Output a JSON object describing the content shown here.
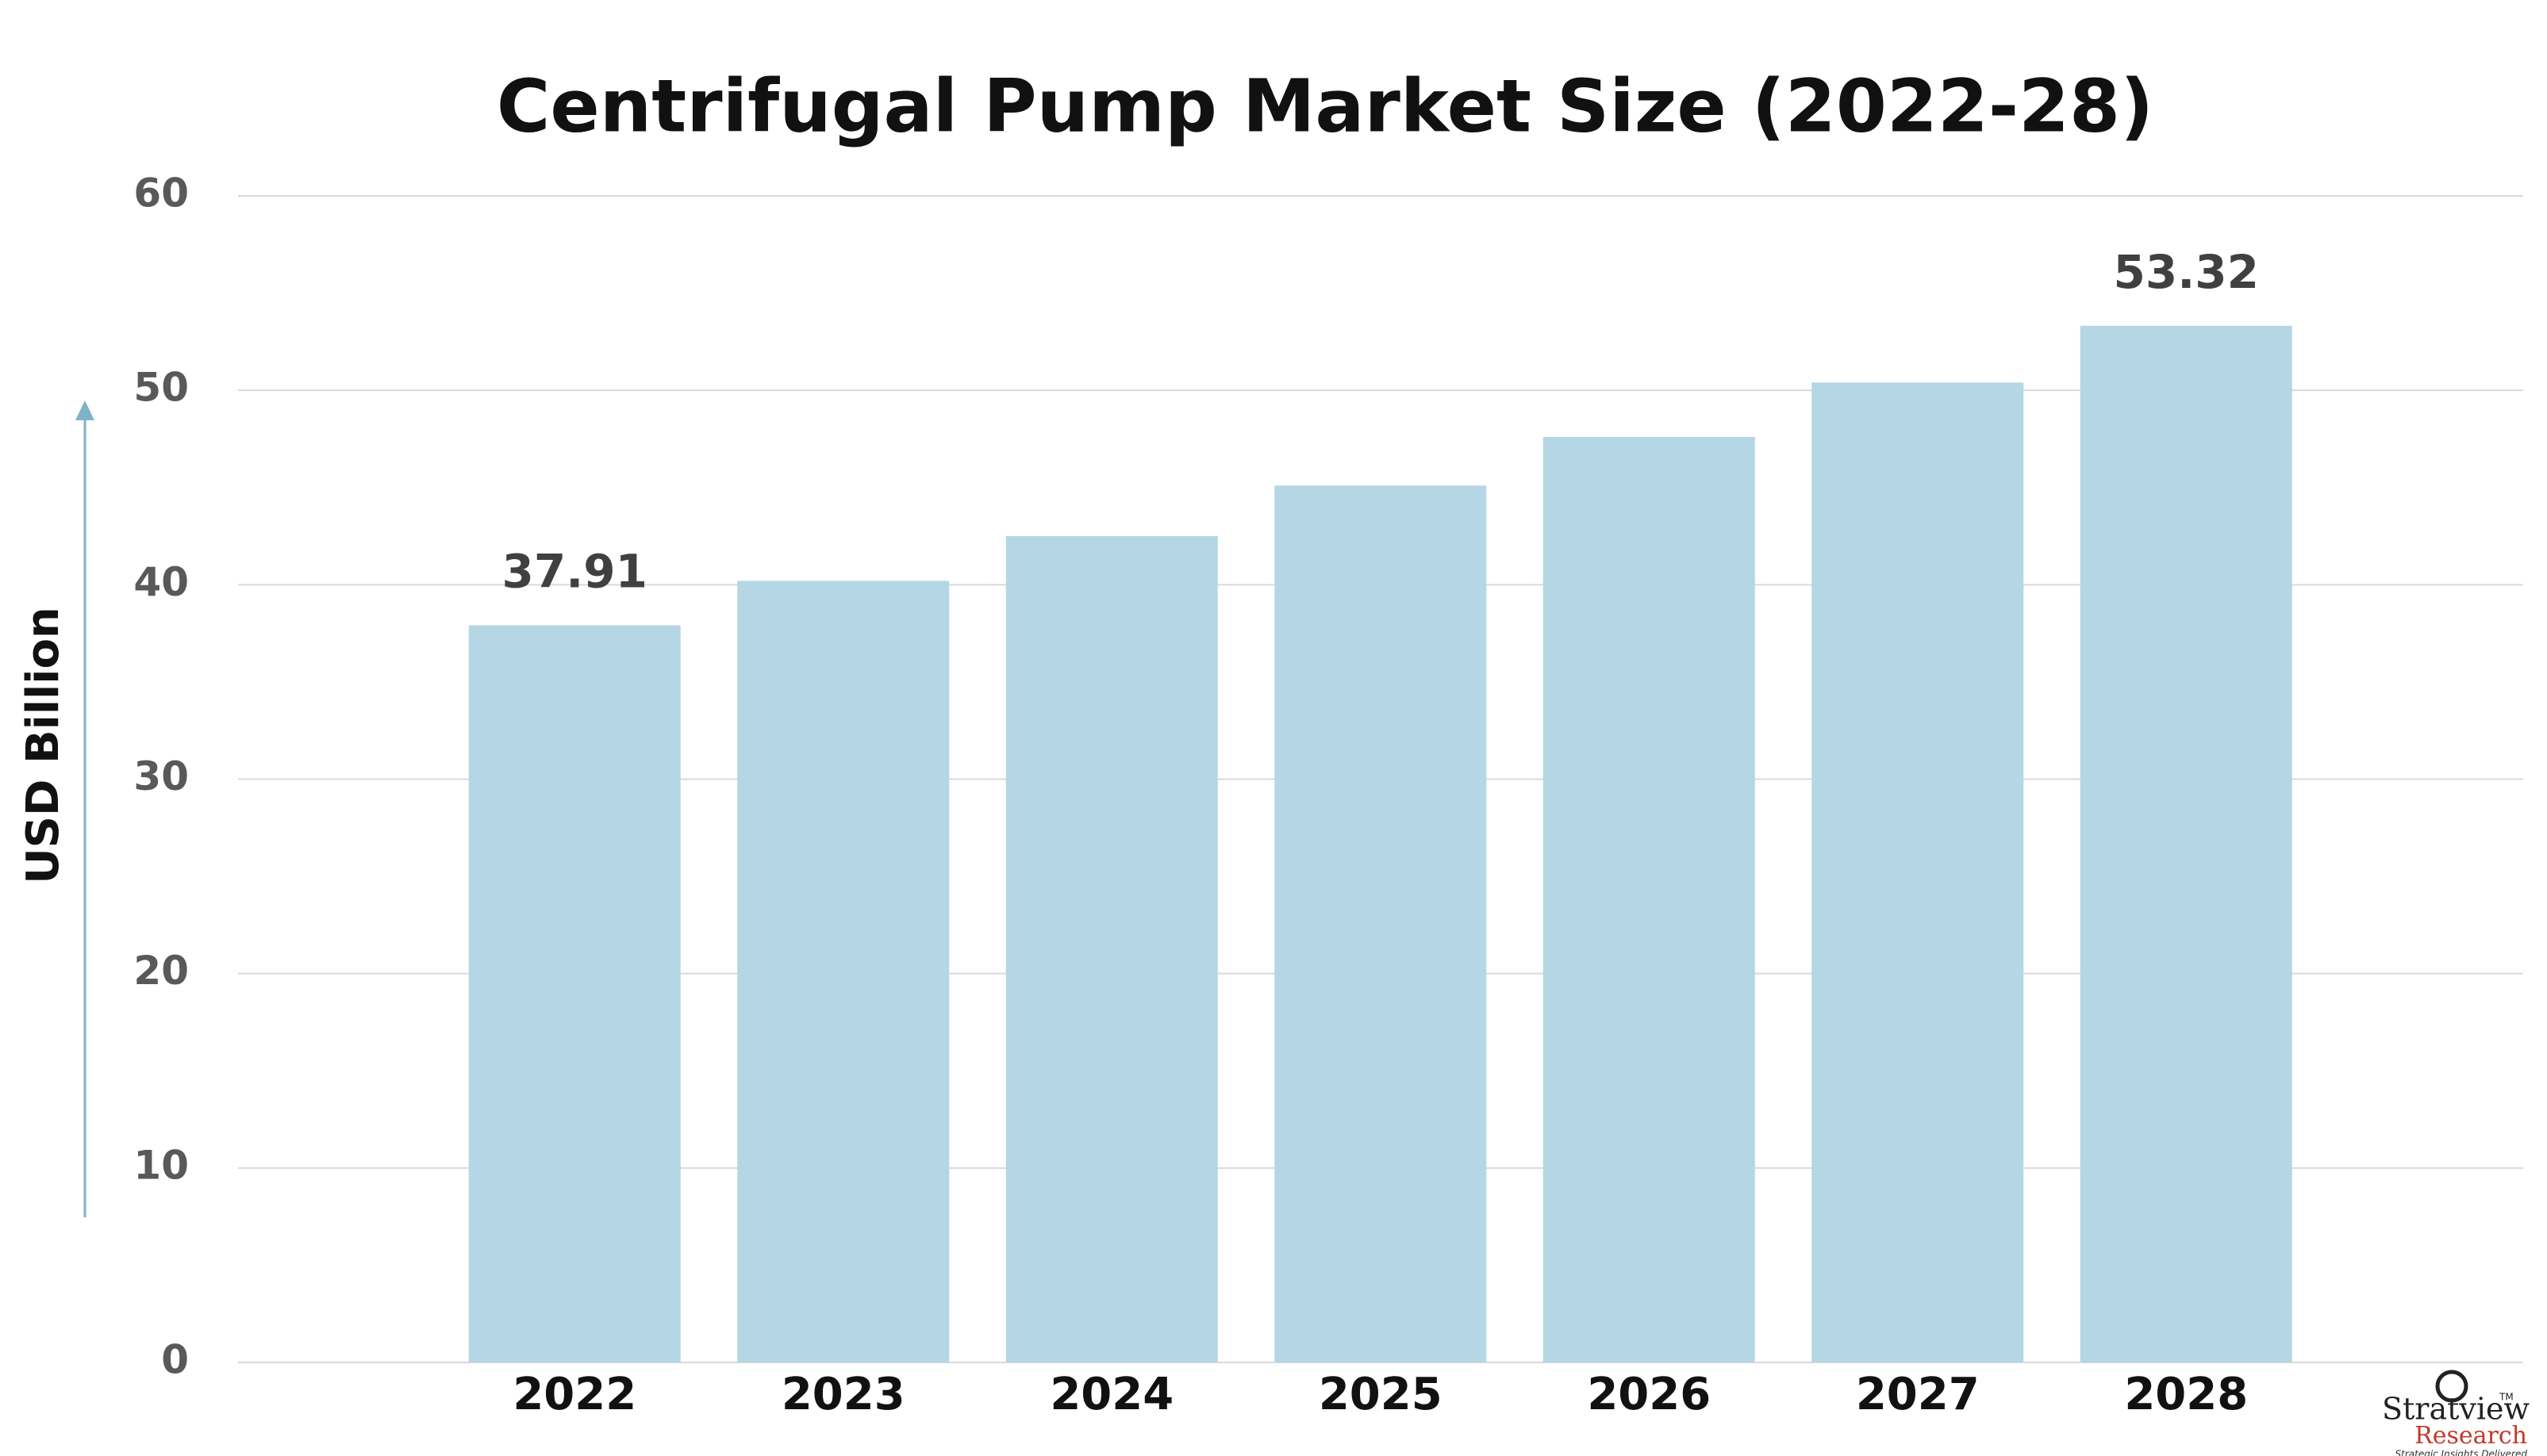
{
  "chart_data": {
    "type": "bar",
    "title": "Centrifugal Pump Market Size (2022-28)",
    "y_axis_label": "USD Billion",
    "categories": [
      "2022",
      "2023",
      "2024",
      "2025",
      "2026",
      "2027",
      "2028"
    ],
    "values": [
      37.91,
      40.2,
      42.5,
      45.1,
      47.6,
      50.4,
      53.32
    ],
    "value_labels": [
      "37.91",
      null,
      null,
      null,
      null,
      null,
      "53.32"
    ],
    "color": "#b5d6e5",
    "ylim": [
      0,
      60
    ],
    "yticks": [
      0,
      10,
      20,
      30,
      40,
      50,
      60
    ],
    "grid": true
  },
  "logo": {
    "name": "Stratview",
    "trademark": "TM",
    "sub": "Research",
    "tagline": "Strategic Insights Delivered"
  }
}
